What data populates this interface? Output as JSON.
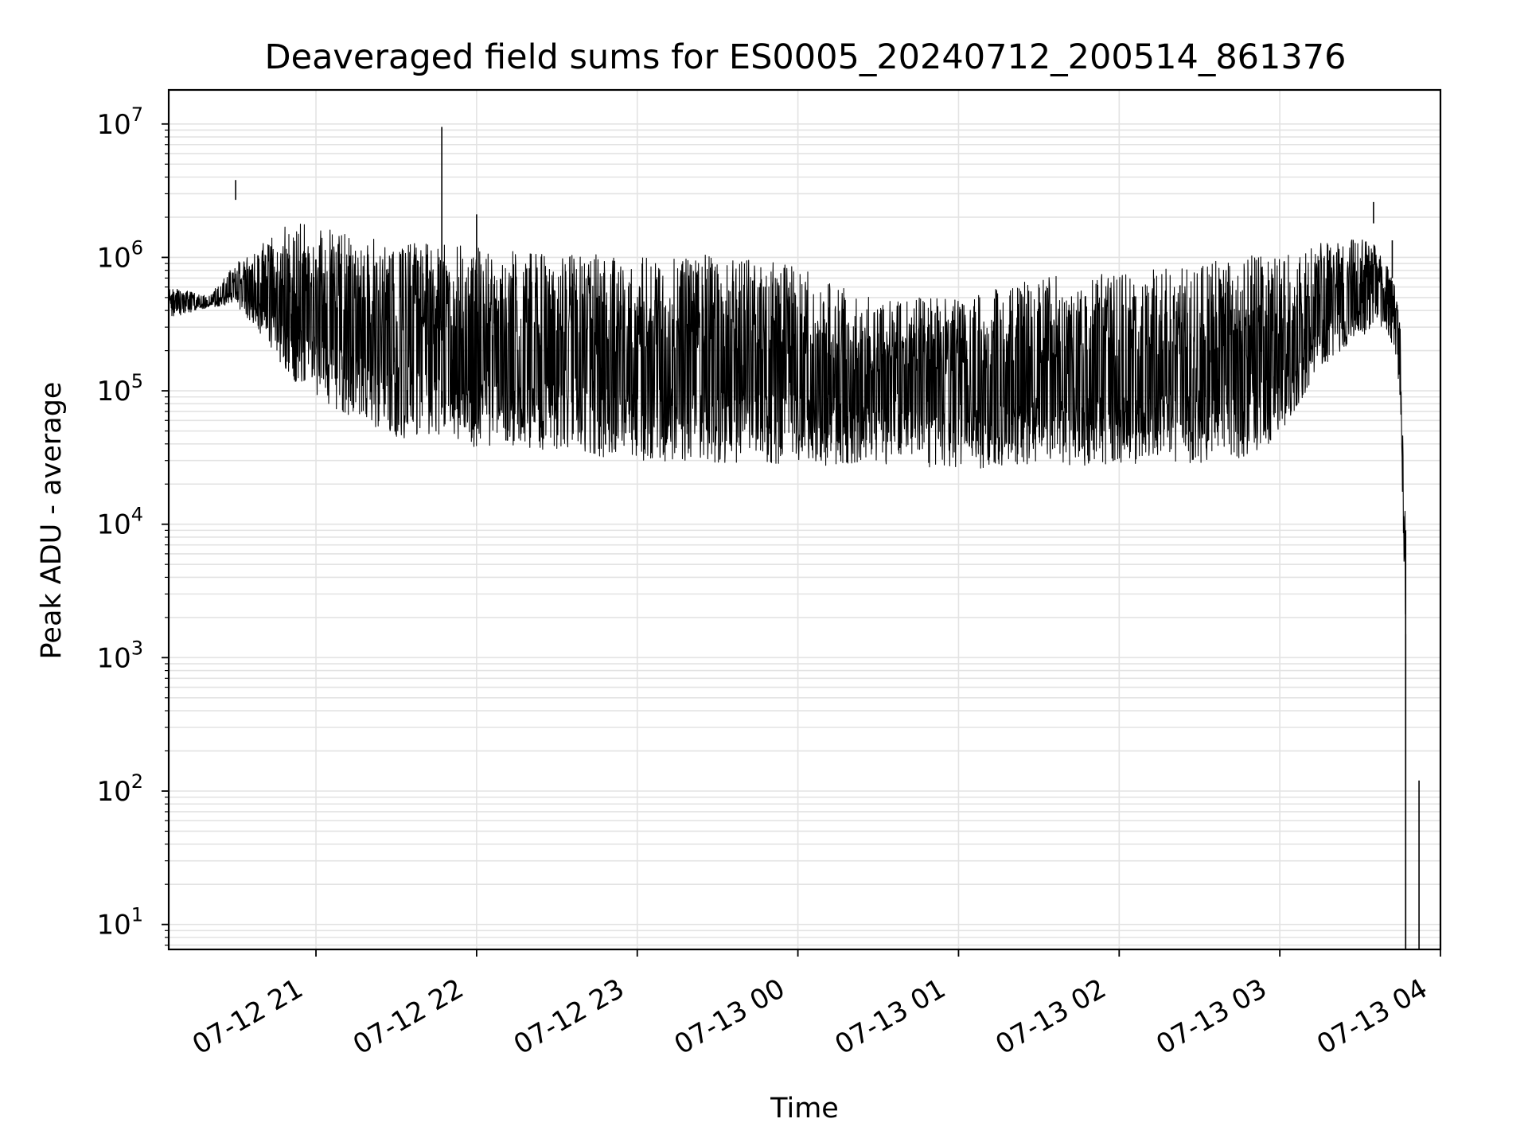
{
  "chart_data": {
    "type": "line",
    "title": "Deaveraged field sums for ES0005_20240712_200514_861376",
    "xlabel": "Time",
    "ylabel": "Peak ADU - average",
    "yscale": "log",
    "ylim": [
      6.5,
      18000000
    ],
    "xlim": [
      "07-12 20:05",
      "07-13 04:00"
    ],
    "grid": true,
    "grid_color": "#e3e3e3",
    "line_color": "#000000",
    "legend": "none",
    "x_ticks": [
      {
        "value": "07-12 21:00",
        "label": "07-12 21"
      },
      {
        "value": "07-12 22:00",
        "label": "07-12 22"
      },
      {
        "value": "07-12 23:00",
        "label": "07-12 23"
      },
      {
        "value": "07-13 00:00",
        "label": "07-13 00"
      },
      {
        "value": "07-13 01:00",
        "label": "07-13 01"
      },
      {
        "value": "07-13 02:00",
        "label": "07-13 02"
      },
      {
        "value": "07-13 03:00",
        "label": "07-13 03"
      },
      {
        "value": "07-13 04:00",
        "label": "07-13 04"
      }
    ],
    "y_ticks": [
      {
        "exp": 1,
        "base": "10",
        "sup": "1"
      },
      {
        "exp": 2,
        "base": "10",
        "sup": "2"
      },
      {
        "exp": 3,
        "base": "10",
        "sup": "3"
      },
      {
        "exp": 4,
        "base": "10",
        "sup": "4"
      },
      {
        "exp": 5,
        "base": "10",
        "sup": "5"
      },
      {
        "exp": 6,
        "base": "10",
        "sup": "6"
      },
      {
        "exp": 7,
        "base": "10",
        "sup": "7"
      }
    ],
    "series": [
      {
        "envelope": {
          "x": [
            "07-12 20:05",
            "07-12 20:20",
            "07-12 20:30",
            "07-12 20:40",
            "07-12 20:50",
            "07-12 21:00",
            "07-12 21:15",
            "07-12 21:30",
            "07-12 21:45",
            "07-12 22:00",
            "07-12 22:15",
            "07-12 22:30",
            "07-12 22:45",
            "07-12 23:00",
            "07-12 23:30",
            "07-13 00:00",
            "07-13 00:30",
            "07-13 01:00",
            "07-13 01:30",
            "07-13 02:00",
            "07-13 02:30",
            "07-13 02:45",
            "07-13 03:00",
            "07-13 03:15",
            "07-13 03:30",
            "07-13 03:35",
            "07-13 03:40",
            "07-13 03:43",
            "07-13 03:45",
            "07-13 03:46",
            "07-13 03:47"
          ],
          "upper": [
            600000,
            520000,
            900000,
            1300000,
            1900000,
            1700000,
            1500000,
            1300000,
            1300000,
            1200000,
            1100000,
            1100000,
            1050000,
            1000000,
            1050000,
            900000,
            500000,
            500000,
            700000,
            800000,
            900000,
            1000000,
            1100000,
            1300000,
            1400000,
            1300000,
            900000,
            600000,
            300000,
            60000,
            8000
          ],
          "lower": [
            350000,
            420000,
            450000,
            250000,
            120000,
            90000,
            60000,
            45000,
            40000,
            38000,
            36000,
            34000,
            32000,
            30000,
            29000,
            28000,
            27000,
            26000,
            27000,
            28000,
            29000,
            30000,
            45000,
            150000,
            250000,
            300000,
            280000,
            200000,
            80000,
            12000,
            1500
          ]
        },
        "spikes": [
          {
            "x": "07-12 20:30",
            "y": 3800000
          },
          {
            "x": "07-12 21:47",
            "y": 9500000
          },
          {
            "x": "07-12 22:00",
            "y": 2100000
          },
          {
            "x": "07-13 03:35",
            "y": 2600000
          },
          {
            "x": "07-13 03:42",
            "y": 700000
          },
          {
            "x": "07-13 03:47",
            "y": 9000
          },
          {
            "x": "07-13 03:52",
            "y": 120
          }
        ]
      }
    ]
  }
}
